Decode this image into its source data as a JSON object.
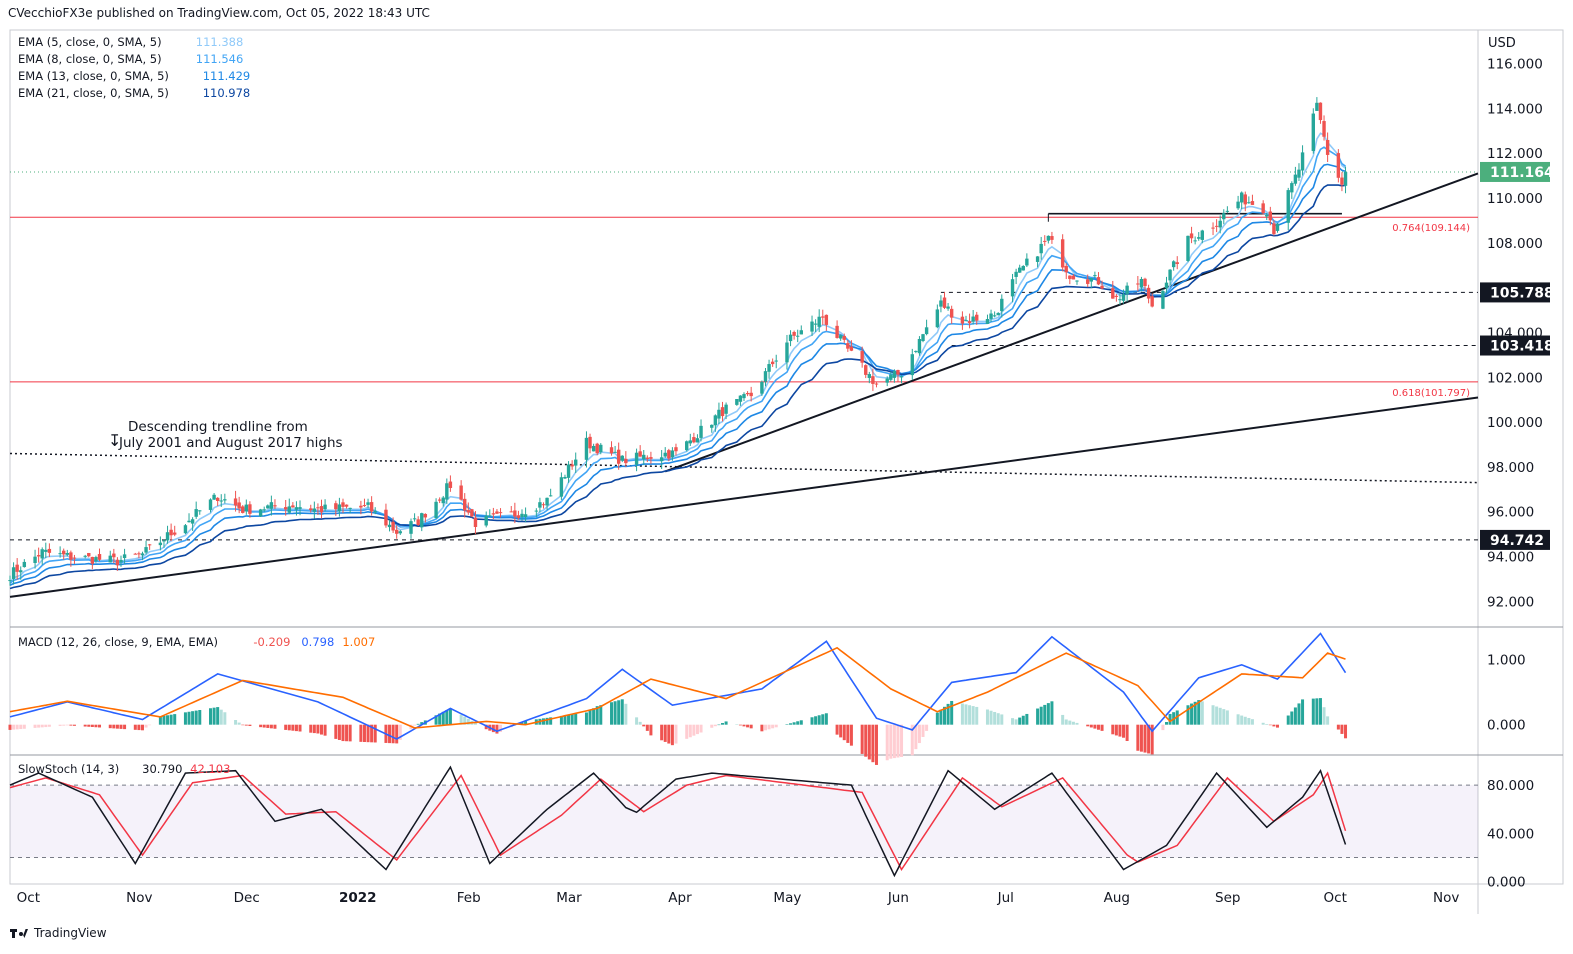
{
  "header": {
    "publisher": "CVecchioFX3e published on TradingView.com, Oct 05, 2022 18:43 UTC"
  },
  "footer": {
    "brand": "TradingView"
  },
  "colors": {
    "up": "#26a69a",
    "down": "#ef5350",
    "ema5": "#90caf9",
    "ema8": "#42a5f5",
    "ema13": "#1e88e5",
    "ema21": "#0d47a1",
    "macd": "#2962ff",
    "signal": "#ff6d00",
    "stochK": "#131722",
    "stochD": "#f23645",
    "fib": "#f23645",
    "last_price_bg": "#4caf7d"
  },
  "chart_data": [
    {
      "type": "candlestick",
      "pane": "price",
      "axis_unit": "USD",
      "yticks": [
        "116.000",
        "114.000",
        "112.000",
        "110.000",
        "108.000",
        "106.000",
        "104.000",
        "102.000",
        "100.000",
        "98.000",
        "96.000",
        "94.000",
        "92.000"
      ],
      "ylim": [
        90.9,
        117.5
      ],
      "xticks": [
        "Oct",
        "Nov",
        "Dec",
        "2022",
        "Feb",
        "Mar",
        "Apr",
        "May",
        "Jun",
        "Jul",
        "Aug",
        "Sep",
        "Oct",
        "Nov"
      ],
      "legend": [
        {
          "label": "EMA (5, close, 0, SMA, 5)",
          "value": "111.388"
        },
        {
          "label": "EMA (8, close, 0, SMA, 5)",
          "value": "111.546"
        },
        {
          "label": "EMA (13, close, 0, SMA, 5)",
          "value": "111.429"
        },
        {
          "label": "EMA (21, close, 0, SMA, 5)",
          "value": "110.978"
        }
      ],
      "close_path": [
        [
          "2021-09-27",
          93.2
        ],
        [
          "2021-10-06",
          94.2
        ],
        [
          "2021-10-13",
          94.0
        ],
        [
          "2021-10-27",
          93.8
        ],
        [
          "2021-11-03",
          94.1
        ],
        [
          "2021-11-15",
          95.5
        ],
        [
          "2021-11-24",
          96.7
        ],
        [
          "2021-12-01",
          96.1
        ],
        [
          "2021-12-15",
          96.3
        ],
        [
          "2021-12-22",
          96.1
        ],
        [
          "2022-01-05",
          96.2
        ],
        [
          "2022-01-13",
          95.1
        ],
        [
          "2022-01-19",
          95.6
        ],
        [
          "2022-01-28",
          97.2
        ],
        [
          "2022-02-04",
          95.5
        ],
        [
          "2022-02-15",
          95.9
        ],
        [
          "2022-02-24",
          96.5
        ],
        [
          "2022-03-07",
          99.1
        ],
        [
          "2022-03-17",
          98.3
        ],
        [
          "2022-03-29",
          98.6
        ],
        [
          "2022-04-01",
          98.6
        ],
        [
          "2022-04-14",
          100.5
        ],
        [
          "2022-04-22",
          101.2
        ],
        [
          "2022-05-02",
          103.6
        ],
        [
          "2022-05-12",
          104.7
        ],
        [
          "2022-05-20",
          103.0
        ],
        [
          "2022-05-27",
          101.7
        ],
        [
          "2022-06-03",
          102.2
        ],
        [
          "2022-06-10",
          104.2
        ],
        [
          "2022-06-14",
          105.3
        ],
        [
          "2022-06-20",
          104.5
        ],
        [
          "2022-06-29",
          104.8
        ],
        [
          "2022-07-05",
          106.5
        ],
        [
          "2022-07-14",
          108.2
        ],
        [
          "2022-07-20",
          106.6
        ],
        [
          "2022-07-28",
          106.3
        ],
        [
          "2022-08-02",
          105.5
        ],
        [
          "2022-08-09",
          106.3
        ],
        [
          "2022-08-12",
          105.2
        ],
        [
          "2022-08-22",
          108.1
        ],
        [
          "2022-08-29",
          108.8
        ],
        [
          "2022-09-06",
          110.0
        ],
        [
          "2022-09-13",
          109.5
        ],
        [
          "2022-09-15",
          108.6
        ],
        [
          "2022-09-22",
          111.3
        ],
        [
          "2022-09-27",
          114.1
        ],
        [
          "2022-09-30",
          112.0
        ],
        [
          "2022-10-04",
          110.6
        ],
        [
          "2022-10-05",
          111.164
        ]
      ],
      "last_price": "111.164",
      "levels": [
        {
          "label": "105.788",
          "value": 105.788,
          "style": "dashed",
          "from": "2022-06-14"
        },
        {
          "label": "103.418",
          "value": 103.418,
          "style": "dashed",
          "from": "2022-06-17"
        },
        {
          "label": "94.742",
          "value": 94.742,
          "style": "dashed",
          "from": "2021-09-27"
        },
        {
          "value": 109.3,
          "style": "solid",
          "from": "2022-07-14",
          "to": "2022-10-04"
        }
      ],
      "fib_levels": [
        {
          "label": "0.764(109.144)",
          "value": 109.144
        },
        {
          "label": "0.618(101.797)",
          "value": 101.797
        }
      ],
      "trendlines": [
        {
          "from": [
            "2021-09-27",
            92.2
          ],
          "to": [
            "2022-11-11",
            101.1
          ]
        },
        {
          "from": [
            "2022-03-29",
            97.8
          ],
          "to": [
            "2022-11-11",
            111.1
          ]
        },
        {
          "from": [
            "2021-09-27",
            98.6
          ],
          "to": [
            "2022-11-11",
            97.3
          ],
          "style": "dotted"
        }
      ],
      "annotation": "Descending trendline from\nJuly 2001 and August 2017 highs"
    },
    {
      "type": "line+bar",
      "pane": "macd",
      "legend_label": "MACD (12, 26, close, 9, EMA, EMA)",
      "values": [
        "-0.209",
        "0.798",
        "1.007"
      ],
      "yticks": [
        "1.000",
        "0.000"
      ],
      "ylim": [
        -0.45,
        1.5
      ],
      "macd": [
        [
          "2021-09-27",
          0.12
        ],
        [
          "2021-10-13",
          0.35
        ],
        [
          "2021-11-03",
          0.08
        ],
        [
          "2021-11-24",
          0.78
        ],
        [
          "2021-12-22",
          0.35
        ],
        [
          "2022-01-13",
          -0.22
        ],
        [
          "2022-01-28",
          0.25
        ],
        [
          "2022-02-10",
          -0.1
        ],
        [
          "2022-03-07",
          0.4
        ],
        [
          "2022-03-17",
          0.85
        ],
        [
          "2022-03-31",
          0.3
        ],
        [
          "2022-04-25",
          0.55
        ],
        [
          "2022-05-13",
          1.28
        ],
        [
          "2022-05-27",
          0.1
        ],
        [
          "2022-06-06",
          -0.08
        ],
        [
          "2022-06-17",
          0.65
        ],
        [
          "2022-07-05",
          0.8
        ],
        [
          "2022-07-15",
          1.35
        ],
        [
          "2022-08-04",
          0.5
        ],
        [
          "2022-08-12",
          -0.1
        ],
        [
          "2022-08-25",
          0.72
        ],
        [
          "2022-09-06",
          0.92
        ],
        [
          "2022-09-16",
          0.7
        ],
        [
          "2022-09-28",
          1.4
        ],
        [
          "2022-10-05",
          0.798
        ]
      ],
      "signal": [
        [
          "2021-09-27",
          0.2
        ],
        [
          "2021-10-13",
          0.36
        ],
        [
          "2021-11-08",
          0.12
        ],
        [
          "2021-12-01",
          0.68
        ],
        [
          "2021-12-29",
          0.42
        ],
        [
          "2022-01-18",
          -0.05
        ],
        [
          "2022-02-07",
          0.05
        ],
        [
          "2022-02-18",
          0.0
        ],
        [
          "2022-03-10",
          0.25
        ],
        [
          "2022-03-25",
          0.7
        ],
        [
          "2022-04-15",
          0.4
        ],
        [
          "2022-05-16",
          1.18
        ],
        [
          "2022-05-31",
          0.55
        ],
        [
          "2022-06-13",
          0.2
        ],
        [
          "2022-06-27",
          0.5
        ],
        [
          "2022-07-19",
          1.1
        ],
        [
          "2022-08-08",
          0.6
        ],
        [
          "2022-08-17",
          0.05
        ],
        [
          "2022-09-06",
          0.78
        ],
        [
          "2022-09-23",
          0.72
        ],
        [
          "2022-09-30",
          1.1
        ],
        [
          "2022-10-05",
          1.007
        ]
      ]
    },
    {
      "type": "line",
      "pane": "stochastic",
      "legend_label": "SlowStoch (14, 3)",
      "values": [
        "30.790",
        "42.103"
      ],
      "yticks": [
        "80.000",
        "40.000",
        "0.000"
      ],
      "ylim": [
        -2,
        105
      ],
      "bands": [
        20,
        80
      ],
      "k": [
        [
          "2021-09-27",
          80
        ],
        [
          "2021-10-05",
          90
        ],
        [
          "2021-10-20",
          70
        ],
        [
          "2021-11-01",
          15
        ],
        [
          "2021-11-15",
          90
        ],
        [
          "2021-11-29",
          92
        ],
        [
          "2021-12-10",
          50
        ],
        [
          "2021-12-23",
          60
        ],
        [
          "2022-01-10",
          10
        ],
        [
          "2022-01-28",
          95
        ],
        [
          "2022-02-08",
          15
        ],
        [
          "2022-02-24",
          60
        ],
        [
          "2022-03-09",
          90
        ],
        [
          "2022-03-20",
          55
        ],
        [
          "2022-04-01",
          85
        ],
        [
          "2022-04-11",
          90
        ],
        [
          "2022-05-20",
          80
        ],
        [
          "2022-06-01",
          5
        ],
        [
          "2022-06-16",
          92
        ],
        [
          "2022-06-29",
          60
        ],
        [
          "2022-07-15",
          90
        ],
        [
          "2022-08-04",
          10
        ],
        [
          "2022-08-16",
          30
        ],
        [
          "2022-08-30",
          90
        ],
        [
          "2022-09-13",
          45
        ],
        [
          "2022-09-23",
          70
        ],
        [
          "2022-09-28",
          92
        ],
        [
          "2022-10-05",
          30.79
        ]
      ],
      "d": [
        [
          "2021-09-27",
          78
        ],
        [
          "2021-10-07",
          86
        ],
        [
          "2021-10-22",
          72
        ],
        [
          "2021-11-03",
          22
        ],
        [
          "2021-11-17",
          82
        ],
        [
          "2021-12-01",
          88
        ],
        [
          "2021-12-13",
          56
        ],
        [
          "2021-12-27",
          58
        ],
        [
          "2022-01-13",
          18
        ],
        [
          "2022-01-31",
          88
        ],
        [
          "2022-02-11",
          22
        ],
        [
          "2022-02-28",
          55
        ],
        [
          "2022-03-11",
          85
        ],
        [
          "2022-03-23",
          58
        ],
        [
          "2022-04-04",
          80
        ],
        [
          "2022-04-15",
          88
        ],
        [
          "2022-05-23",
          74
        ],
        [
          "2022-06-03",
          10
        ],
        [
          "2022-06-20",
          86
        ],
        [
          "2022-07-01",
          62
        ],
        [
          "2022-07-18",
          86
        ],
        [
          "2022-08-07",
          15
        ],
        [
          "2022-08-19",
          30
        ],
        [
          "2022-09-02",
          86
        ],
        [
          "2022-09-15",
          50
        ],
        [
          "2022-09-26",
          72
        ],
        [
          "2022-09-30",
          90
        ],
        [
          "2022-10-05",
          42.103
        ]
      ]
    }
  ]
}
